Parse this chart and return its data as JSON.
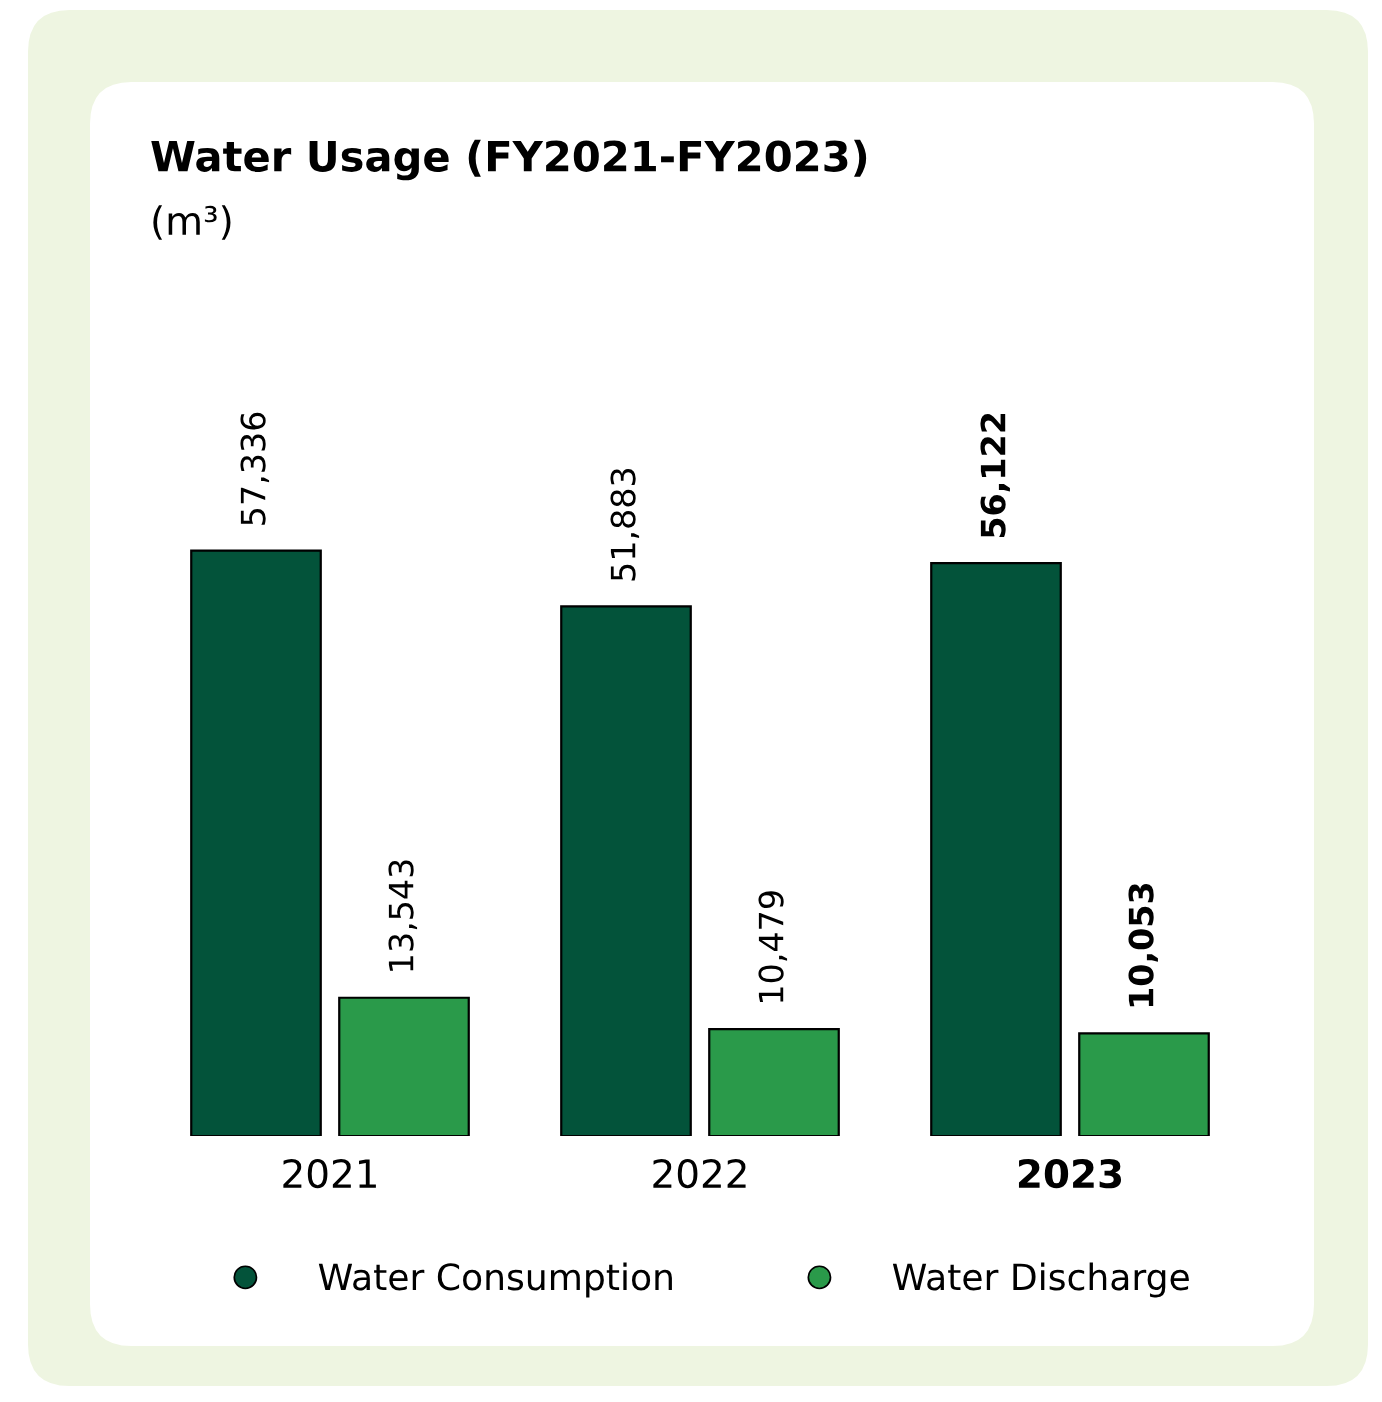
{
  "chart_data": {
    "type": "bar",
    "title": "Water Usage (FY2021-FY2023)",
    "subtitle": "(m³)",
    "categories": [
      "2021",
      "2022",
      "2023"
    ],
    "series": [
      {
        "name": "Water Consumption",
        "color": "#03533a",
        "values": [
          57336,
          51883,
          56122
        ],
        "value_labels": [
          "57,336",
          "51,883",
          "56,122"
        ]
      },
      {
        "name": "Water Discharge",
        "color": "#2a9a4a",
        "values": [
          13543,
          10479,
          10053
        ],
        "value_labels": [
          "13,543",
          "10,479",
          "10,053"
        ]
      }
    ],
    "legend": "bottom",
    "marker": "circle"
  }
}
